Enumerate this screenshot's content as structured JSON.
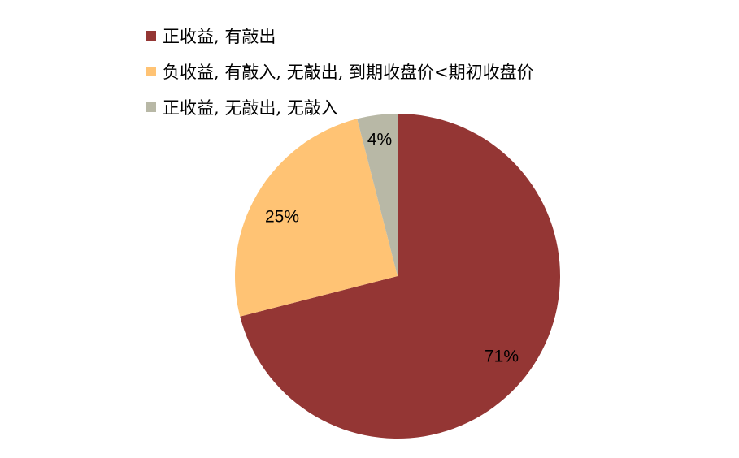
{
  "chart_data": {
    "type": "pie",
    "start_angle": "12 o'clock",
    "direction": "clockwise",
    "legend_position": "top",
    "slices": [
      {
        "name": "正收益, 有敲出",
        "value": 71,
        "label": "71%",
        "color": "#943634"
      },
      {
        "name": "负收益, 有敲入, 无敲出, 到期收盘价<期初收盘价",
        "value": 25,
        "label": "25%",
        "color": "#FFC374"
      },
      {
        "name": "正收益, 无敲出, 无敲入",
        "value": 4,
        "label": "4%",
        "color": "#B8B8A6"
      }
    ]
  }
}
